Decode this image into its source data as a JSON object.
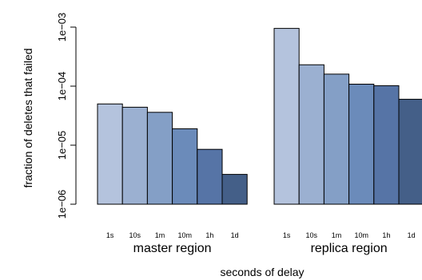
{
  "chart_data": {
    "type": "bar",
    "y_scale": "log",
    "ylim": [
      1e-06,
      0.001
    ],
    "yticks": [
      {
        "value": 1e-06,
        "label": "1e−06"
      },
      {
        "value": 1e-05,
        "label": "1e−05"
      },
      {
        "value": 0.0001,
        "label": "1e−04"
      },
      {
        "value": 0.001,
        "label": "1e−03"
      }
    ],
    "xlabel": "seconds of delay",
    "ylabel": "fraction of deletes that failed",
    "categories": [
      "1s",
      "10s",
      "1m",
      "10m",
      "1h",
      "1d"
    ],
    "groups": [
      {
        "name": "master region",
        "values": [
          5e-05,
          4.4e-05,
          3.6e-05,
          1.9e-05,
          8.5e-06,
          3.2e-06
        ]
      },
      {
        "name": "replica region",
        "values": [
          0.00095,
          0.00023,
          0.00016,
          0.000108,
          0.000102,
          6e-05
        ]
      }
    ],
    "colors": [
      "#b4c3dd",
      "#9bb0d1",
      "#849fc6",
      "#6b8bba",
      "#5674a6",
      "#445f88"
    ],
    "grid": false
  }
}
